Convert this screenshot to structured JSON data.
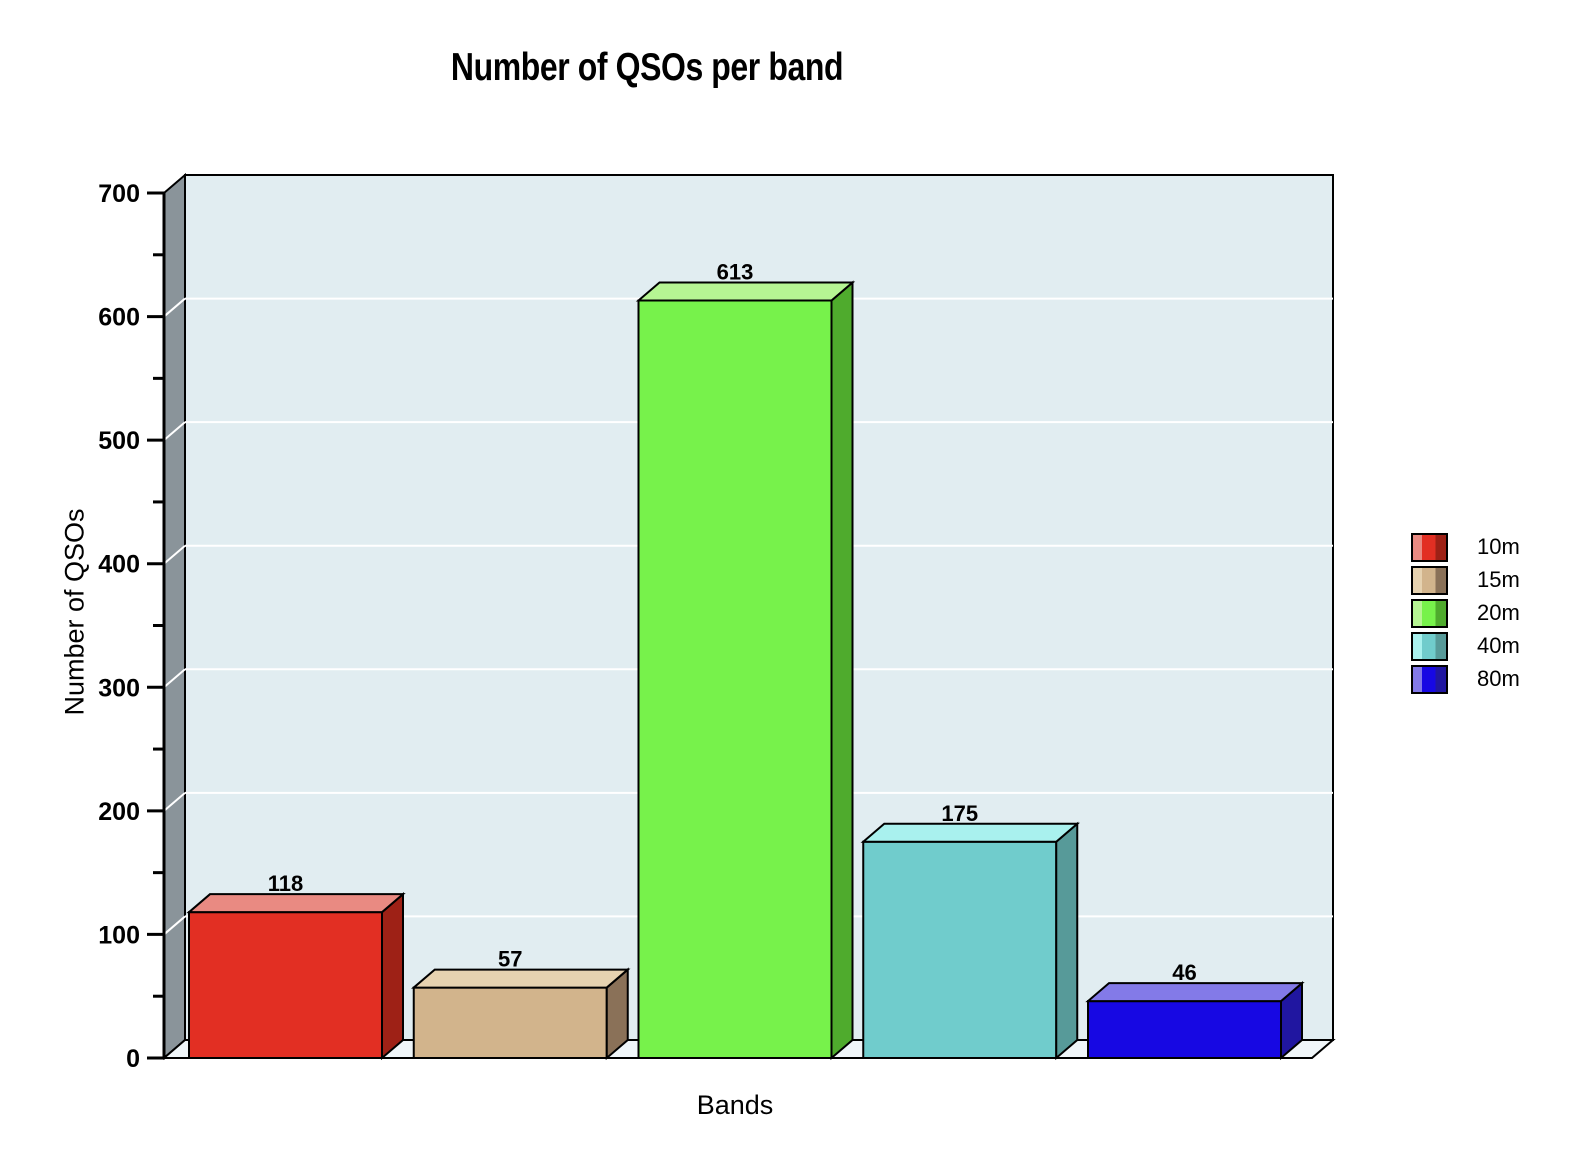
{
  "page": {
    "background": "#FFFFFF"
  },
  "chart_data": {
    "type": "bar",
    "style": "3d",
    "title": "Number of QSOs per band",
    "xlabel": "Bands",
    "ylabel": "Number of QSOs",
    "categories": [
      "10m",
      "15m",
      "20m",
      "40m",
      "80m"
    ],
    "values": [
      118,
      57,
      613,
      175,
      46
    ],
    "bar_value_labels": [
      "118",
      "57",
      "613",
      "175",
      "46"
    ],
    "ylim": [
      0,
      700
    ],
    "ytick_major": 100,
    "ytick_minor": 50,
    "ytick_labels": [
      "0",
      "100",
      "200",
      "300",
      "400",
      "500",
      "600",
      "700"
    ],
    "grid": true,
    "grid_color": "#FFFFFF",
    "legend_position": "right",
    "series_colors": [
      {
        "name": "10m",
        "front": "#E22F23",
        "top": "#E98A82",
        "side": "#9E2116"
      },
      {
        "name": "15m",
        "front": "#D2B48C",
        "top": "#E6D2B0",
        "side": "#8A7158"
      },
      {
        "name": "20m",
        "front": "#77F24B",
        "top": "#B6F593",
        "side": "#4FAB2D"
      },
      {
        "name": "40m",
        "front": "#70CCCC",
        "top": "#A9F1EE",
        "side": "#579A99"
      },
      {
        "name": "80m",
        "front": "#1708E3",
        "top": "#837AE8",
        "side": "#2016A0"
      }
    ],
    "wall_color": "#8A949A",
    "back_wall_color": "#E1EDF1",
    "floor_color": "#F0F6F9",
    "outline_color": "#000000",
    "text_color": "#000000"
  }
}
